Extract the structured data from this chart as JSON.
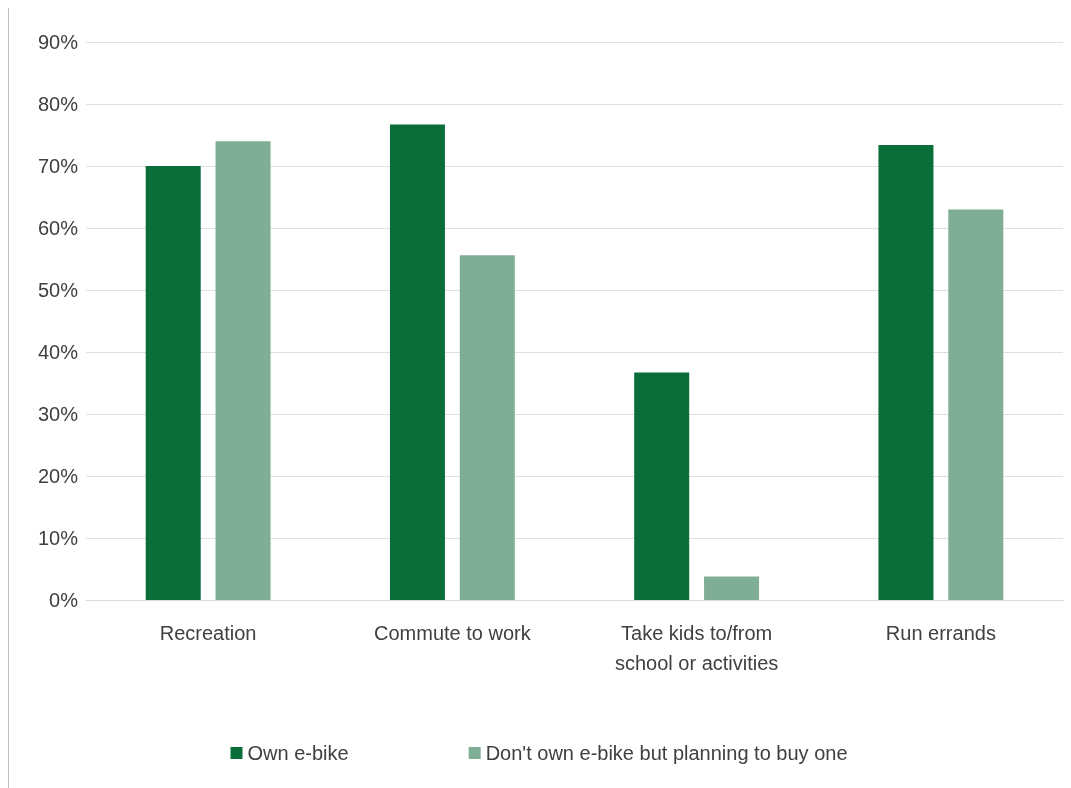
{
  "chart_data": {
    "type": "bar",
    "categories": [
      "Recreation",
      "Commute to work",
      "Take kids to/from\nschool or activities",
      "Run errands"
    ],
    "series": [
      {
        "name": "Own e-bike",
        "color": "#0a6e3a",
        "values": [
          70.0,
          76.7,
          36.7,
          73.4
        ]
      },
      {
        "name": "Don't own e-bike but planning to buy one",
        "color": "#80ad95",
        "values": [
          74.0,
          55.6,
          3.8,
          63.0
        ]
      }
    ],
    "ylim": [
      0,
      90
    ],
    "yticks": [
      {
        "value": 0,
        "label": "0%"
      },
      {
        "value": 10,
        "label": "10%"
      },
      {
        "value": 20,
        "label": "20%"
      },
      {
        "value": 30,
        "label": "30%"
      },
      {
        "value": 40,
        "label": "40%"
      },
      {
        "value": 50,
        "label": "50%"
      },
      {
        "value": 60,
        "label": "60%"
      },
      {
        "value": 70,
        "label": "70%"
      },
      {
        "value": 80,
        "label": "80%"
      },
      {
        "value": 90,
        "label": "90%"
      }
    ],
    "grid": "y",
    "legend": "bottom"
  }
}
